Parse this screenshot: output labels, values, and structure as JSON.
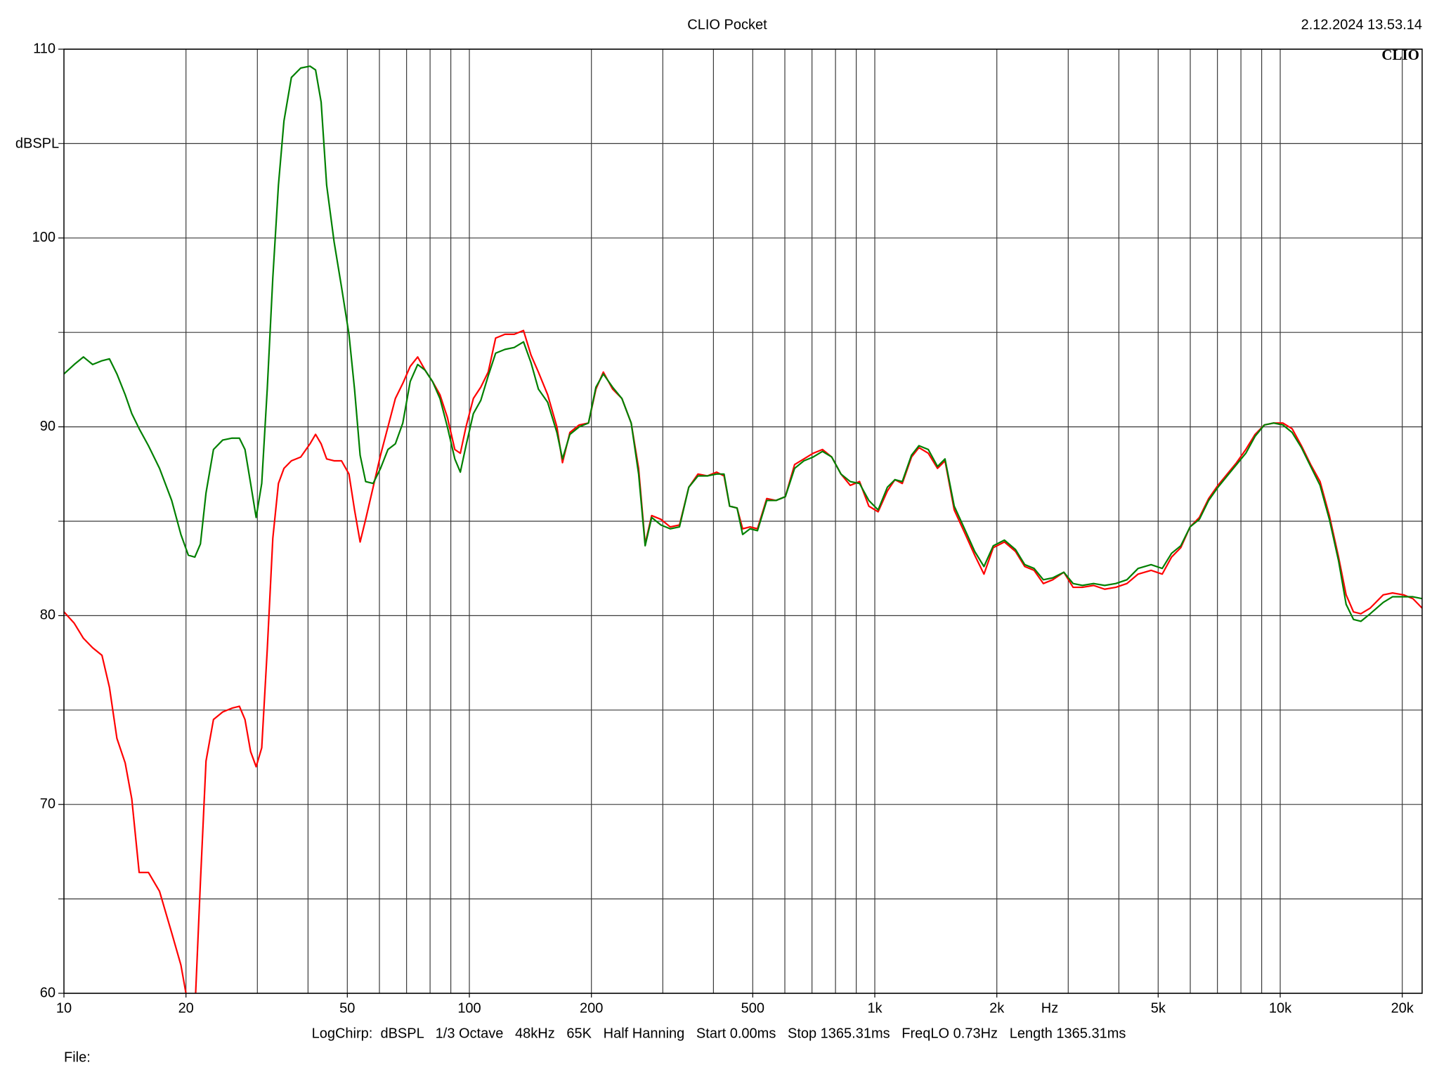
{
  "chart_data": {
    "type": "line",
    "title": "CLIO Pocket",
    "timestamp": "2.12.2024 13.53.14",
    "logo": "CLIO",
    "ylabel": "dBSPL",
    "xlabel": "Hz",
    "footer": "LogChirp:  dBSPL   1/3 Octave   48kHz   65K   Half Hanning   Start 0.00ms   Stop 1365.31ms   FreqLO 0.73Hz   Length 1365.31ms",
    "file_label": "File:",
    "xscale": "log",
    "xlim": [
      10,
      22390
    ],
    "ylim": [
      60,
      110
    ],
    "xticks": [
      10,
      20,
      50,
      100,
      200,
      500,
      {
        "value": 1000,
        "label": "1k"
      },
      {
        "value": 2000,
        "label": "2k"
      },
      {
        "value": 5000,
        "label": "5k"
      },
      {
        "value": 10000,
        "label": "10k"
      },
      {
        "value": 20000,
        "label": "20k"
      }
    ],
    "yticks": [
      60,
      70,
      80,
      90,
      100,
      110
    ],
    "grid": true,
    "xgrid": [
      20,
      30,
      40,
      50,
      60,
      70,
      80,
      90,
      100,
      200,
      300,
      400,
      500,
      600,
      700,
      800,
      900,
      1000,
      2000,
      3000,
      4000,
      5000,
      6000,
      7000,
      8000,
      9000,
      10000,
      20000
    ],
    "ygrid": [
      65,
      75,
      85,
      95,
      105
    ],
    "x": [
      10,
      10.6,
      11.17,
      11.77,
      12.41,
      12.95,
      13.51,
      14.16,
      14.7,
      15.33,
      16.16,
      17.21,
      18.44,
      19.43,
      20.27,
      21.03,
      21.71,
      22.41,
      23.38,
      24.64,
      25.97,
      27.09,
      27.96,
      28.87,
      29.79,
      30.75,
      31.73,
      32.75,
      33.81,
      34.89,
      36.39,
      38.37,
      40.45,
      41.75,
      43.09,
      44.46,
      46.38,
      48.38,
      50.47,
      52.09,
      53.77,
      55.49,
      57.89,
      60.38,
      62.98,
      65.69,
      68.52,
      71.47,
      74.56,
      77.77,
      81.12,
      84.62,
      88.26,
      92.07,
      95,
      98.1,
      102.3,
      106.7,
      111.3,
      116.1,
      122.4,
      129,
      136,
      141.9,
      148,
      156,
      164.4,
      169.7,
      177,
      186.6,
      196.7,
      205.2,
      214,
      225.6,
      237.8,
      250.7,
      261.5,
      271.4,
      281.6,
      296.9,
      312.9,
      329.8,
      347.7,
      366.4,
      386.3,
      407.2,
      424.8,
      438.5,
      457.4,
      472.1,
      492.4,
      513.6,
      541.4,
      570.7,
      601.6,
      634.2,
      668.5,
      704.7,
      742.9,
      783.1,
      825.2,
      869.9,
      917.1,
      966.7,
      1019,
      1074,
      1121,
      1169,
      1232,
      1285,
      1355,
      1428,
      1490,
      1570,
      1673,
      1764,
      1859,
      1960,
      2088,
      2224,
      2344,
      2471,
      2605,
      2747,
      2926,
      3084,
      3251,
      3464,
      3690,
      3930,
      4187,
      4461,
      4802,
      5117,
      5394,
      5685,
      5993,
      6318,
      6660,
      7021,
      7401,
      7802,
      8225,
      8670,
      9140,
      9632,
      10150,
      10700,
      11280,
      11890,
      12540,
      13220,
      13930,
      14540,
      15160,
      15810,
      16670,
      17950,
      18920,
      20150,
      21250,
      22390
    ],
    "series": [
      {
        "color": "#ff0000",
        "values": [
          80.2,
          79.6,
          78.8,
          78.3,
          77.9,
          76.2,
          73.5,
          72.2,
          70.3,
          66.4,
          66.4,
          65.4,
          63.2,
          61.5,
          59.3,
          59.0,
          65.9,
          72.3,
          74.5,
          74.9,
          75.1,
          75.2,
          74.5,
          72.8,
          72.0,
          73.0,
          78.2,
          84.1,
          87.0,
          87.8,
          88.2,
          88.4,
          89.1,
          89.6,
          89.1,
          88.3,
          88.2,
          88.2,
          87.5,
          85.6,
          83.9,
          85.1,
          86.8,
          88.5,
          90.0,
          91.5,
          92.3,
          93.2,
          93.7,
          93.0,
          92.4,
          91.7,
          90.5,
          88.8,
          88.6,
          90.0,
          91.5,
          92.1,
          92.9,
          94.7,
          94.9,
          94.9,
          95.1,
          93.8,
          92.9,
          91.7,
          90.0,
          88.1,
          89.7,
          90.1,
          90.2,
          92.0,
          92.9,
          92.0,
          91.5,
          90.2,
          87.8,
          83.8,
          85.3,
          85.1,
          84.7,
          84.8,
          86.8,
          87.5,
          87.4,
          87.6,
          87.4,
          85.8,
          85.7,
          84.6,
          84.7,
          84.6,
          86.2,
          86.1,
          86.3,
          88.0,
          88.3,
          88.6,
          88.8,
          88.4,
          87.5,
          86.9,
          87.1,
          85.8,
          85.5,
          86.6,
          87.2,
          87.0,
          88.4,
          88.9,
          88.6,
          87.8,
          88.2,
          85.6,
          84.3,
          83.2,
          82.2,
          83.6,
          83.9,
          83.4,
          82.6,
          82.4,
          81.7,
          81.9,
          82.3,
          81.5,
          81.5,
          81.6,
          81.4,
          81.5,
          81.7,
          82.2,
          82.4,
          82.2,
          83.1,
          83.6,
          84.7,
          85.2,
          86.2,
          86.9,
          87.5,
          88.1,
          88.8,
          89.6,
          90.1,
          90.2,
          90.2,
          89.9,
          89.0,
          88.0,
          87.1,
          85.3,
          83.1,
          81.1,
          80.2,
          80.1,
          80.4,
          81.1,
          81.2,
          81.1,
          80.9,
          80.4
        ]
      },
      {
        "color": "#008000",
        "values": [
          92.8,
          93.3,
          93.7,
          93.3,
          93.5,
          93.6,
          92.8,
          91.7,
          90.7,
          89.9,
          89.0,
          87.8,
          86.1,
          84.3,
          83.2,
          83.1,
          83.8,
          86.5,
          88.8,
          89.3,
          89.4,
          89.4,
          88.8,
          87.0,
          85.2,
          87.0,
          92.0,
          97.9,
          102.8,
          106.2,
          108.5,
          109.0,
          109.1,
          108.9,
          107.2,
          102.8,
          99.8,
          97.4,
          94.9,
          92.0,
          88.5,
          87.1,
          87.0,
          87.8,
          88.8,
          89.1,
          90.2,
          92.4,
          93.3,
          93.0,
          92.4,
          91.5,
          90.0,
          88.3,
          87.6,
          89.0,
          90.7,
          91.4,
          92.7,
          93.9,
          94.1,
          94.2,
          94.5,
          93.4,
          92.0,
          91.3,
          89.7,
          88.3,
          89.6,
          90.0,
          90.2,
          92.1,
          92.8,
          92.1,
          91.5,
          90.2,
          87.5,
          83.7,
          85.2,
          84.8,
          84.6,
          84.7,
          86.8,
          87.4,
          87.4,
          87.5,
          87.5,
          85.8,
          85.7,
          84.3,
          84.6,
          84.5,
          86.1,
          86.1,
          86.3,
          87.8,
          88.2,
          88.4,
          88.7,
          88.4,
          87.5,
          87.1,
          87.0,
          86.1,
          85.6,
          86.8,
          87.2,
          87.1,
          88.5,
          89.0,
          88.8,
          87.9,
          88.3,
          85.8,
          84.5,
          83.4,
          82.6,
          83.7,
          84.0,
          83.5,
          82.7,
          82.5,
          81.9,
          82.0,
          82.3,
          81.7,
          81.6,
          81.7,
          81.6,
          81.7,
          81.9,
          82.5,
          82.7,
          82.5,
          83.3,
          83.7,
          84.7,
          85.1,
          86.1,
          86.8,
          87.4,
          88.0,
          88.6,
          89.5,
          90.1,
          90.2,
          90.1,
          89.7,
          88.9,
          87.9,
          86.9,
          85.1,
          82.9,
          80.6,
          79.8,
          79.7,
          80.1,
          80.7,
          81.0,
          81.0,
          81.0,
          80.9
        ]
      }
    ]
  }
}
